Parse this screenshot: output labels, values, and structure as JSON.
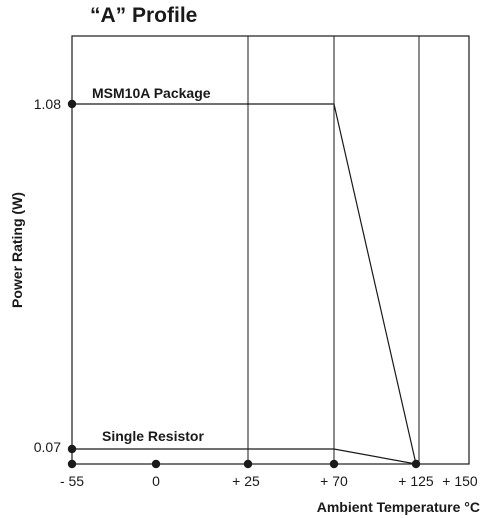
{
  "chart_data": {
    "type": "line",
    "title": "“A” Profile",
    "xlabel": "Ambient Temperature °C",
    "ylabel": "Power Rating (W)",
    "x_categories": [
      "- 55",
      "0",
      "+ 25",
      "+ 70",
      "+ 125",
      "+ 150"
    ],
    "y_ticks": [
      {
        "label": "1.08",
        "value": 1.08
      },
      {
        "label": "0.07",
        "value": 0.07
      }
    ],
    "series": [
      {
        "name": "MSM10A Package",
        "points": [
          [
            -55,
            1.08
          ],
          [
            70,
            1.08
          ],
          [
            125,
            0
          ]
        ]
      },
      {
        "name": "Single Resistor",
        "points": [
          [
            -55,
            0.07
          ],
          [
            70,
            0.07
          ],
          [
            125,
            0
          ]
        ]
      }
    ],
    "markers_on_x_axis": [
      "- 55",
      "0",
      "+ 25",
      "+ 70",
      "+ 125"
    ],
    "grid": "vertical at + 25, + 70, + 150"
  }
}
